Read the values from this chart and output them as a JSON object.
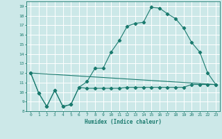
{
  "title": "",
  "xlabel": "Humidex (Indice chaleur)",
  "bg_color": "#cce8e8",
  "grid_color": "#ffffff",
  "line_color": "#1a7a6e",
  "xlim": [
    -0.5,
    23.5
  ],
  "ylim": [
    8,
    19.5
  ],
  "yticks": [
    8,
    9,
    10,
    11,
    12,
    13,
    14,
    15,
    16,
    17,
    18,
    19
  ],
  "xticks": [
    0,
    1,
    2,
    3,
    4,
    5,
    6,
    7,
    8,
    9,
    10,
    11,
    12,
    13,
    14,
    15,
    16,
    17,
    18,
    19,
    20,
    21,
    22,
    23
  ],
  "series1_x": [
    0,
    1,
    2,
    3,
    4,
    5,
    6,
    7,
    8,
    9,
    10,
    11,
    12,
    13,
    14,
    15,
    16,
    17,
    18,
    19,
    20,
    21,
    22,
    23
  ],
  "series1_y": [
    12.0,
    9.9,
    8.5,
    10.2,
    8.5,
    8.7,
    10.5,
    11.1,
    12.5,
    12.5,
    14.2,
    15.4,
    16.9,
    17.2,
    17.3,
    18.9,
    18.8,
    18.2,
    17.7,
    16.7,
    15.2,
    14.2,
    12.0,
    10.8
  ],
  "series2_x": [
    0,
    1,
    2,
    3,
    4,
    5,
    6,
    7,
    8,
    9,
    10,
    11,
    12,
    13,
    14,
    15,
    16,
    17,
    18,
    19,
    20,
    21,
    22,
    23
  ],
  "series2_y": [
    12.0,
    9.9,
    8.5,
    10.2,
    8.5,
    8.7,
    10.5,
    10.4,
    10.4,
    10.4,
    10.4,
    10.4,
    10.5,
    10.5,
    10.5,
    10.5,
    10.5,
    10.5,
    10.5,
    10.5,
    10.8,
    10.8,
    10.8,
    10.8
  ],
  "series3_x": [
    0,
    23
  ],
  "series3_y": [
    12.0,
    10.8
  ]
}
